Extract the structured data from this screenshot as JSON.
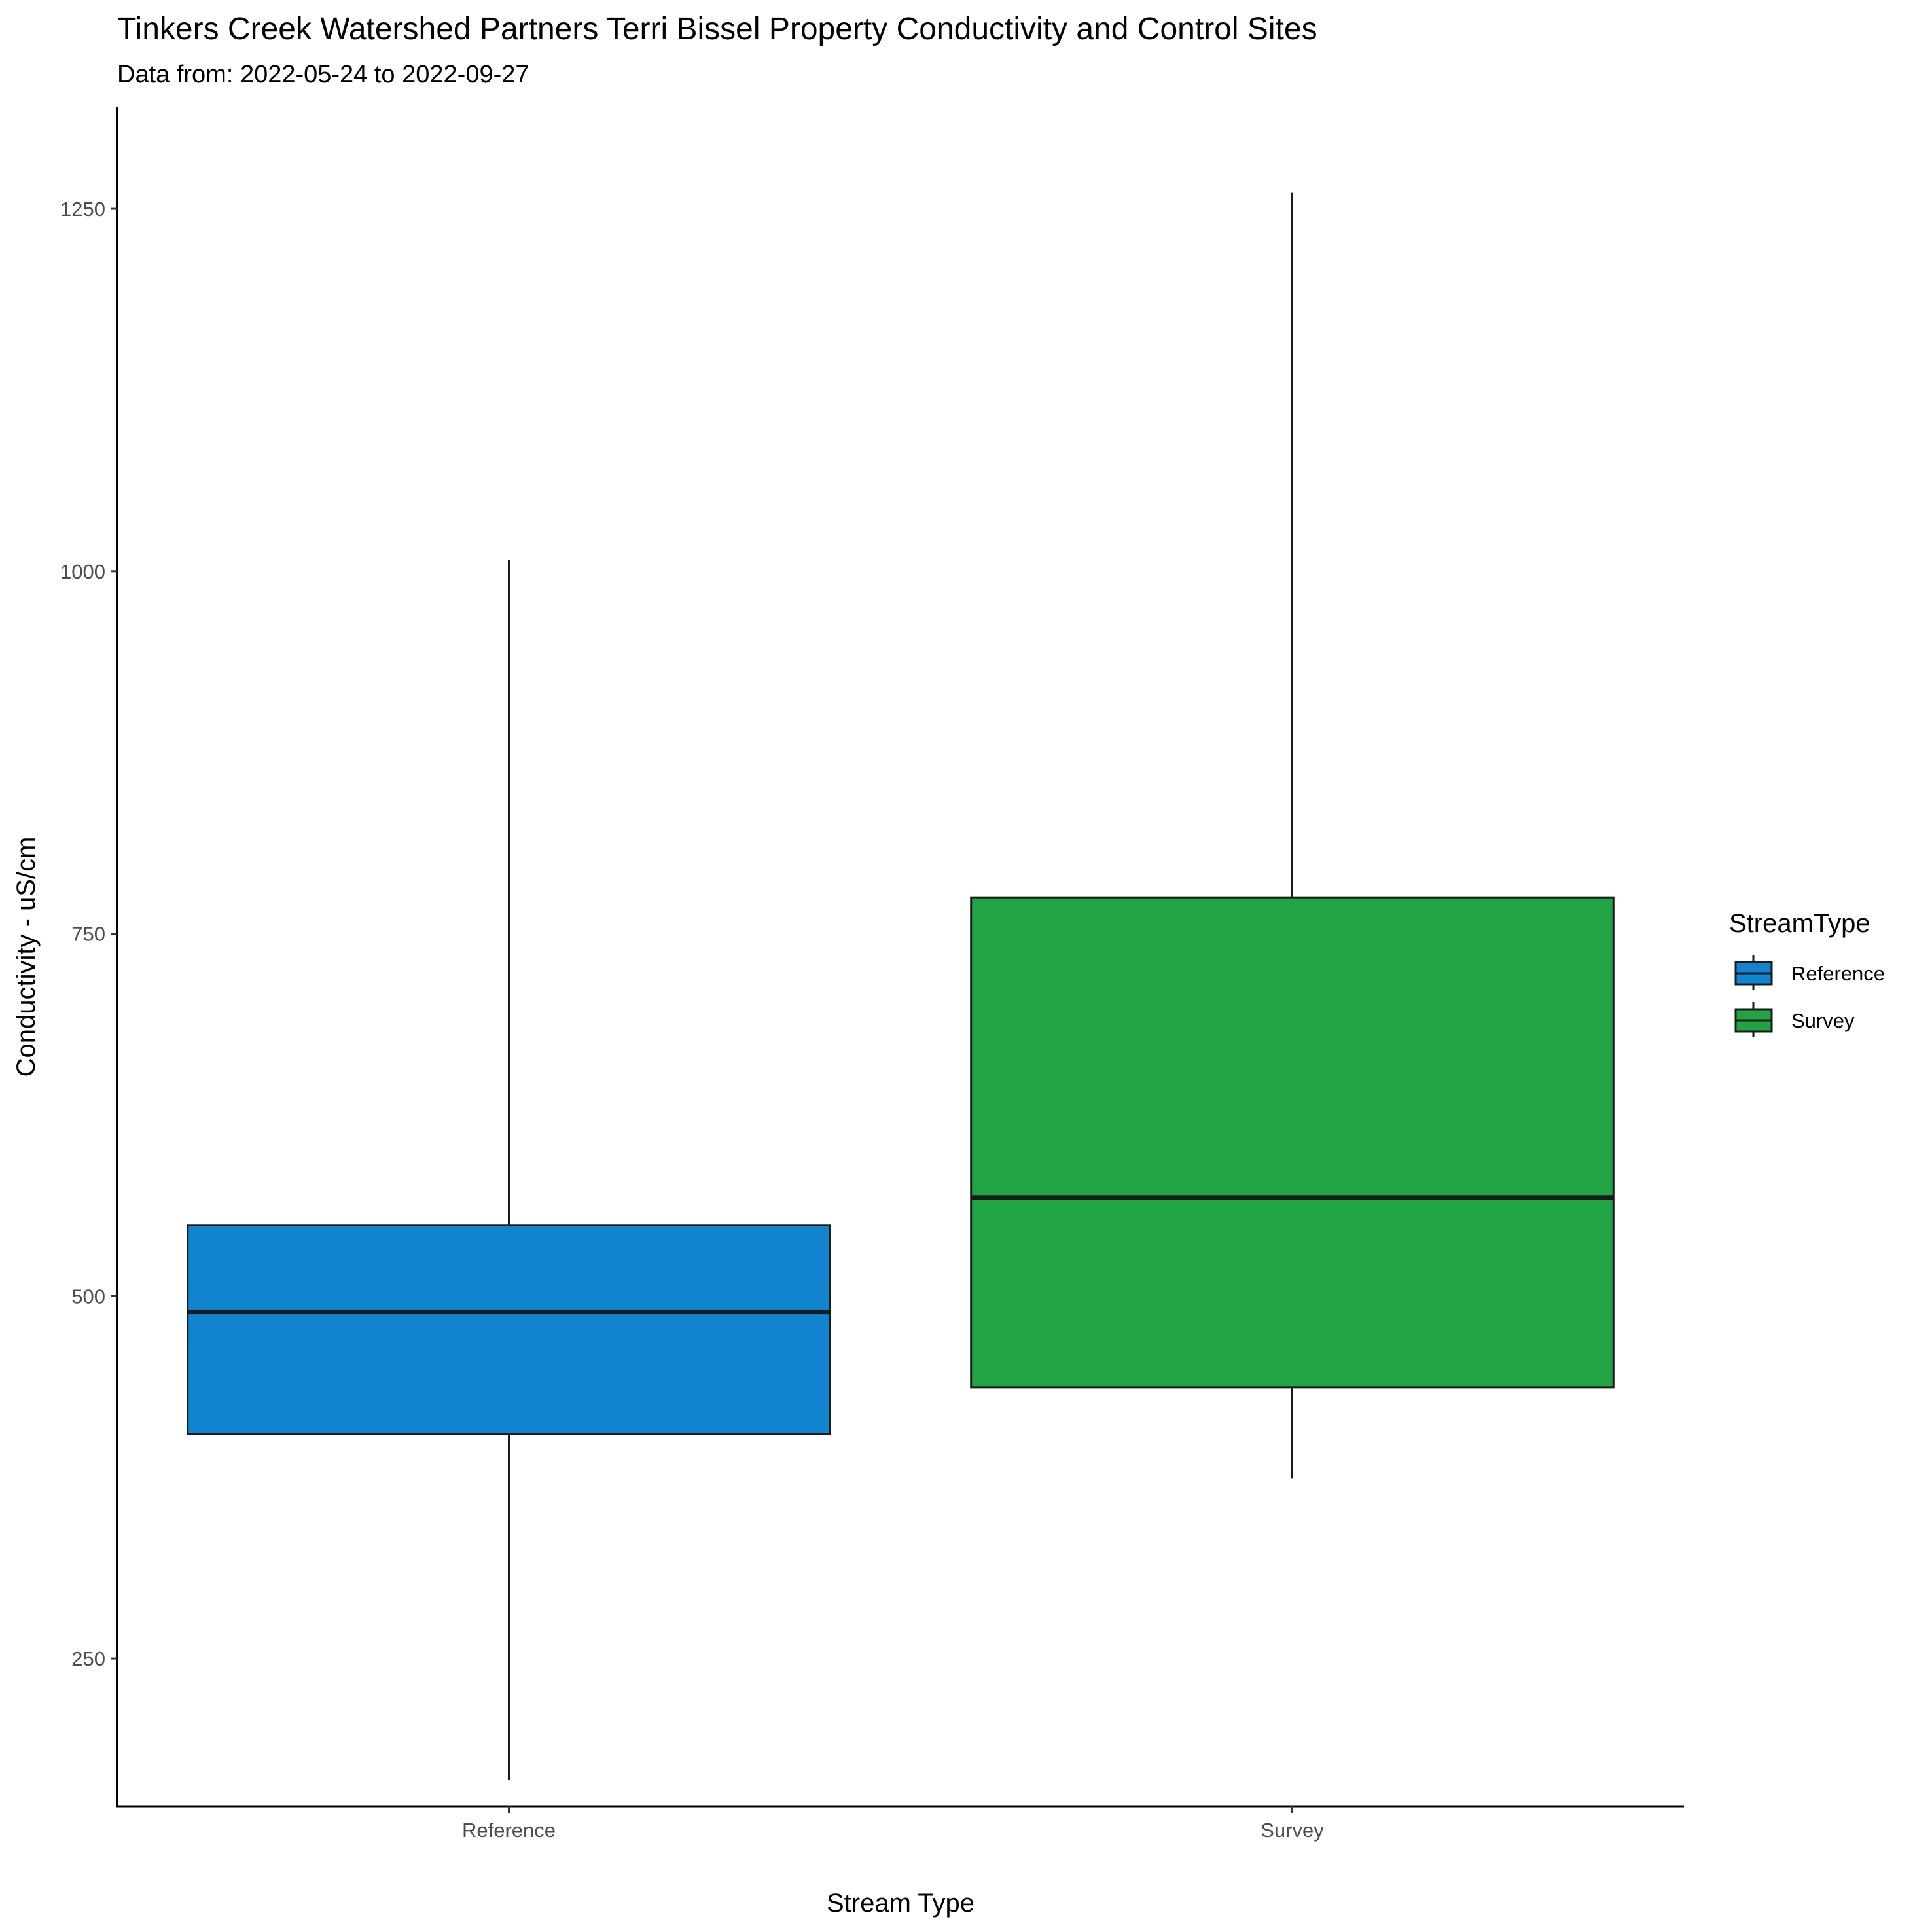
{
  "chart_data": {
    "type": "boxplot",
    "title": "Tinkers Creek Watershed Partners Terri Bissel Property Conductivity and Control Sites",
    "subtitle": "Data from: 2022-05-24 to 2022-09-27",
    "xlabel": "Stream Type",
    "ylabel": "Conductivity - uS/cm",
    "ylim": [
      148,
      1320
    ],
    "y_ticks": [
      250,
      500,
      750,
      1000,
      1250
    ],
    "y_tick_labels": [
      "250",
      "500",
      "750",
      "1000",
      "1250"
    ],
    "categories": [
      "Reference",
      "Survey"
    ],
    "grid": false,
    "legend": {
      "title": "StreamType",
      "placement": "right",
      "entries": [
        "Reference",
        "Survey"
      ]
    },
    "series": [
      {
        "name": "Reference",
        "color": "#1184cf",
        "min": 166,
        "q1": 405,
        "median": 489,
        "q3": 549,
        "max": 1008
      },
      {
        "name": "Survey",
        "color": "#21a444",
        "min": 374,
        "q1": 437,
        "median": 568,
        "q3": 775,
        "max": 1261
      }
    ]
  }
}
